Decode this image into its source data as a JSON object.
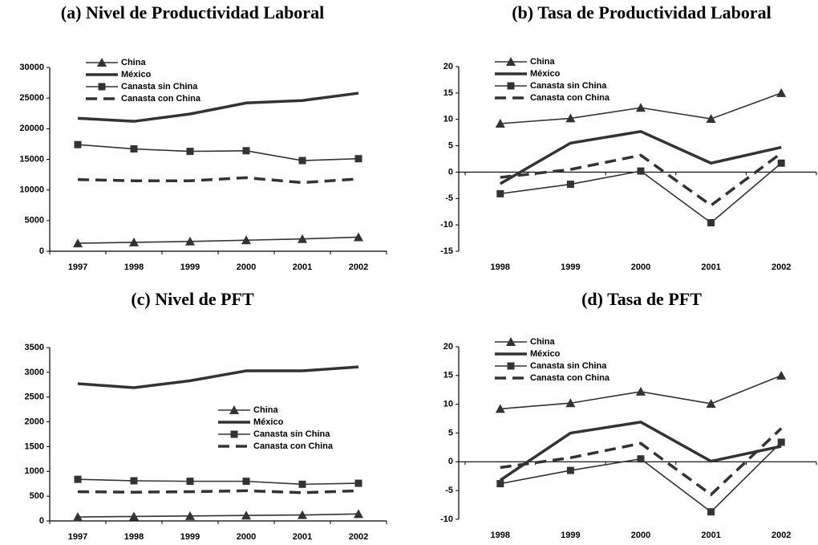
{
  "chart_data": [
    {
      "type": "line",
      "title": "(a) Nivel de Productividad Laboral",
      "categories": [
        "1997",
        "1998",
        "1999",
        "2000",
        "2001",
        "2002"
      ],
      "ylim": [
        0,
        30000
      ],
      "yticks": [
        0,
        5000,
        10000,
        15000,
        20000,
        25000,
        30000
      ],
      "legend": "upper left",
      "series": [
        {
          "name": "China",
          "color": "#333333",
          "line_style": "thin",
          "marker": "triangle",
          "values": [
            1300,
            1450,
            1600,
            1800,
            2000,
            2300
          ]
        },
        {
          "name": "México",
          "color": "#333333",
          "line_style": "thick",
          "values": [
            21700,
            21200,
            22400,
            24200,
            24600,
            25800
          ]
        },
        {
          "name": "Canasta sin China",
          "color": "#333333",
          "line_style": "thin",
          "marker": "square",
          "values": [
            17400,
            16700,
            16300,
            16400,
            14800,
            15100
          ]
        },
        {
          "name": "Canasta con China",
          "color": "#333333",
          "line_style": "dashed",
          "values": [
            11700,
            11500,
            11500,
            12000,
            11200,
            11800
          ]
        }
      ]
    },
    {
      "type": "line",
      "title": "(b) Tasa de Productividad Laboral",
      "categories": [
        "1998",
        "1999",
        "2000",
        "2001",
        "2002"
      ],
      "ylim": [
        -15,
        20
      ],
      "yticks": [
        -15,
        -10,
        -5,
        0,
        5,
        10,
        15,
        20
      ],
      "legend": "upper left",
      "series": [
        {
          "name": "China",
          "color": "#333333",
          "line_style": "thin",
          "marker": "triangle",
          "values": [
            9.2,
            10.2,
            12.2,
            10.1,
            15.0
          ]
        },
        {
          "name": "México",
          "color": "#333333",
          "line_style": "thick",
          "values": [
            -2.2,
            5.5,
            7.7,
            1.7,
            4.7
          ]
        },
        {
          "name": "Canasta sin China",
          "color": "#333333",
          "line_style": "thin",
          "marker": "square",
          "values": [
            -4.1,
            -2.3,
            0.2,
            -9.6,
            1.7
          ]
        },
        {
          "name": "Canasta con China",
          "color": "#333333",
          "line_style": "dashed",
          "values": [
            -1.0,
            0.5,
            3.2,
            -6.3,
            3.6
          ]
        }
      ]
    },
    {
      "type": "line",
      "title": "(c) Nivel de PFT",
      "categories": [
        "1997",
        "1998",
        "1999",
        "2000",
        "2001",
        "2002"
      ],
      "ylim": [
        0,
        3500
      ],
      "yticks": [
        0,
        500,
        1000,
        1500,
        2000,
        2500,
        3000,
        3500
      ],
      "legend": "center right",
      "series": [
        {
          "name": "China",
          "color": "#333333",
          "line_style": "thin",
          "marker": "triangle",
          "values": [
            80,
            90,
            100,
            110,
            120,
            140
          ]
        },
        {
          "name": "México",
          "color": "#333333",
          "line_style": "thick",
          "values": [
            2770,
            2690,
            2830,
            3030,
            3030,
            3110
          ]
        },
        {
          "name": "Canasta sin China",
          "color": "#333333",
          "line_style": "thin",
          "marker": "square",
          "values": [
            840,
            810,
            800,
            800,
            740,
            760
          ]
        },
        {
          "name": "Canasta con China",
          "color": "#333333",
          "line_style": "dashed",
          "values": [
            590,
            580,
            590,
            610,
            570,
            610
          ]
        }
      ]
    },
    {
      "type": "line",
      "title": "(d) Tasa de PFT",
      "categories": [
        "1998",
        "1999",
        "2000",
        "2001",
        "2002"
      ],
      "ylim": [
        -10,
        20
      ],
      "yticks": [
        -10,
        -5,
        0,
        5,
        10,
        15,
        20
      ],
      "legend": "upper left",
      "series": [
        {
          "name": "China",
          "color": "#333333",
          "line_style": "thin",
          "marker": "triangle",
          "values": [
            9.2,
            10.2,
            12.2,
            10.1,
            15.0
          ]
        },
        {
          "name": "México",
          "color": "#333333",
          "line_style": "thick",
          "values": [
            -3.2,
            5.0,
            6.9,
            0.1,
            2.7
          ]
        },
        {
          "name": "Canasta sin China",
          "color": "#333333",
          "line_style": "thin",
          "marker": "square",
          "values": [
            -3.8,
            -1.5,
            0.5,
            -8.7,
            3.4
          ]
        },
        {
          "name": "Canasta con China",
          "color": "#333333",
          "line_style": "dashed",
          "values": [
            -1.0,
            0.7,
            3.2,
            -5.7,
            5.8
          ]
        }
      ]
    }
  ]
}
